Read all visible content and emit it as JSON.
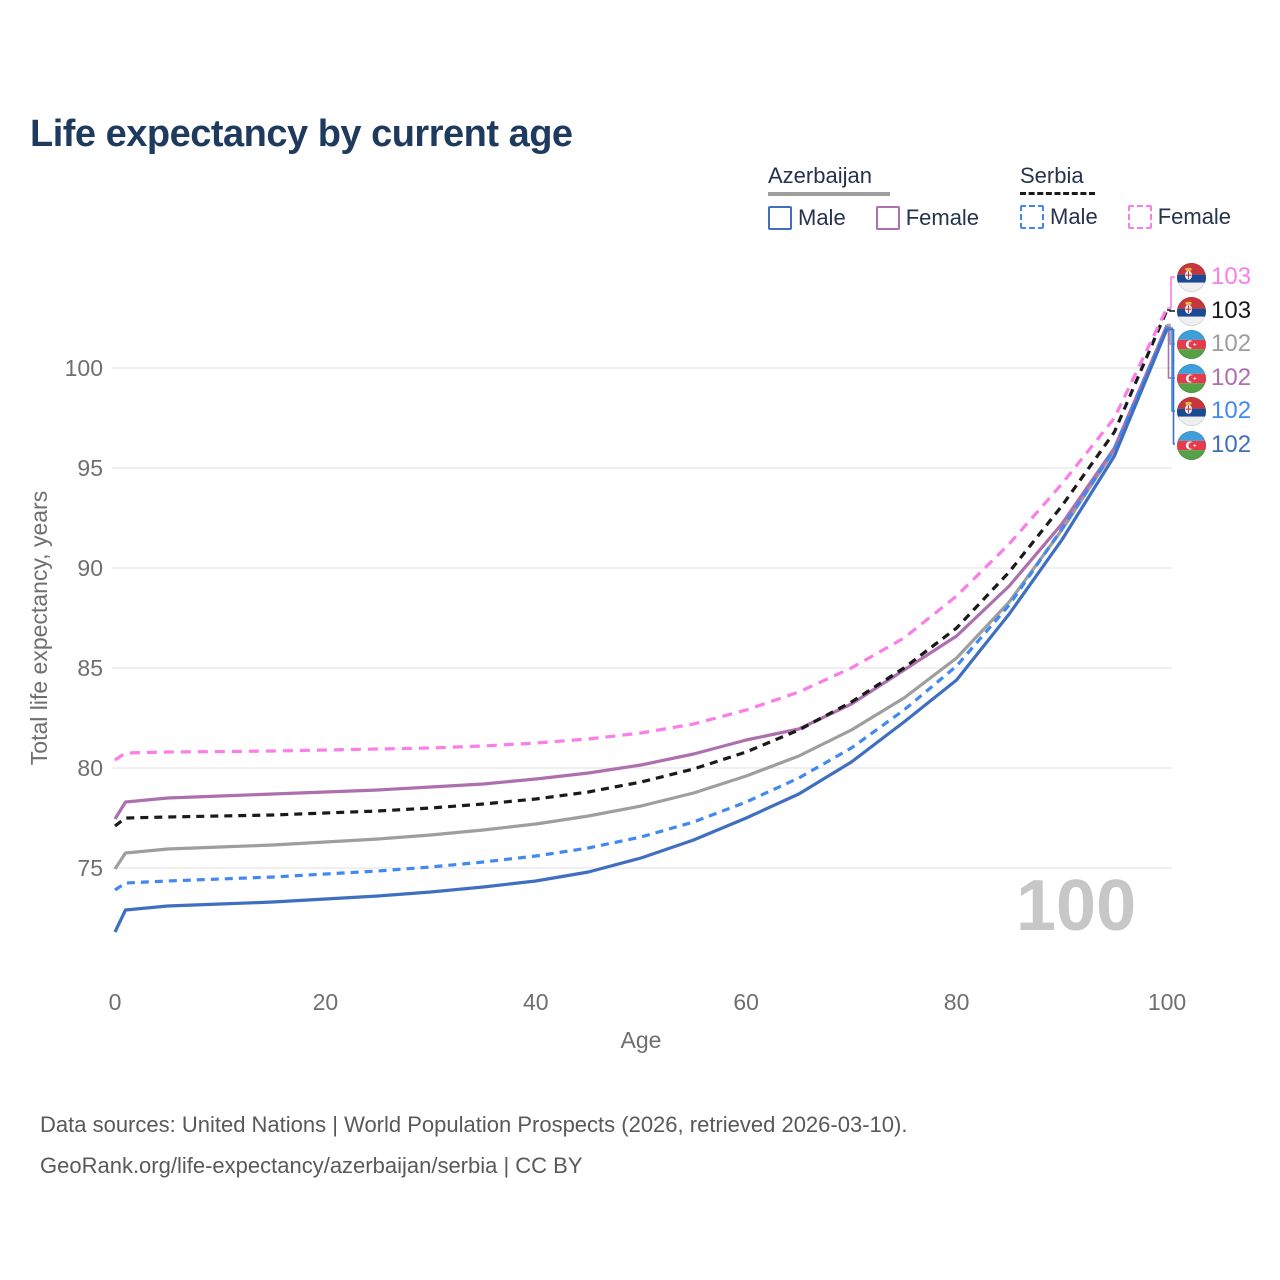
{
  "title": "Life expectancy by current age",
  "watermark": "100",
  "colors": {
    "title": "#1e3a5e",
    "axis_text": "#6f6f6f",
    "grid": "#ececec",
    "watermark": "#c7c7c7",
    "footer_text": "#595959",
    "legend_text": "#26334d",
    "azerbaijan_male": "#3f6fc1",
    "azerbaijan_female": "#ae6fae",
    "azerbaijan_total": "#9e9e9e",
    "serbia_male": "#4189f0",
    "serbia_female": "#fb7de8",
    "serbia_total": "#1a1a1a"
  },
  "legend": {
    "groups": [
      {
        "label": "Azerbaijan",
        "underline_style": "solid",
        "underline_color": "#9e9e9e",
        "items": [
          {
            "label": "Male",
            "color": "#3f6fc1",
            "dashed": false
          },
          {
            "label": "Female",
            "color": "#ae6fae",
            "dashed": false
          }
        ]
      },
      {
        "label": "Serbia",
        "underline_style": "dashed",
        "underline_color": "#1a1a1a",
        "items": [
          {
            "label": "Male",
            "color": "#4189f0",
            "dashed": true
          },
          {
            "label": "Female",
            "color": "#fb7de8",
            "dashed": true
          }
        ]
      }
    ]
  },
  "chart_data": {
    "type": "line",
    "title": "Life expectancy by current age",
    "xlabel": "Age",
    "ylabel": "Total life expectancy, years",
    "xlim": [
      0,
      100
    ],
    "ylim": [
      71,
      104
    ],
    "x_ticks": [
      0,
      20,
      40,
      60,
      80,
      100
    ],
    "y_ticks": [
      75,
      80,
      85,
      90,
      95,
      100
    ],
    "grid": "horizontal",
    "legend_position": "top-right",
    "x": [
      0,
      1,
      5,
      10,
      15,
      20,
      25,
      30,
      35,
      40,
      45,
      50,
      55,
      60,
      65,
      70,
      75,
      80,
      85,
      90,
      95,
      100
    ],
    "series": [
      {
        "id": "serbia-female",
        "name": "Serbia Female",
        "country": "Serbia",
        "sex": "Female",
        "color": "#fb7de8",
        "dashed": true,
        "dash": "10 7",
        "end_label": "103",
        "values": [
          80.4,
          80.75,
          80.8,
          80.82,
          80.85,
          80.9,
          80.95,
          81.0,
          81.1,
          81.25,
          81.45,
          81.75,
          82.2,
          82.9,
          83.8,
          85.0,
          86.5,
          88.6,
          91.2,
          94.2,
          97.5,
          103.0
        ]
      },
      {
        "id": "serbia-total",
        "name": "Serbia (both sexes)",
        "country": "Serbia",
        "sex": "Total",
        "color": "#1a1a1a",
        "dashed": true,
        "dash": "8 6",
        "end_label": "103",
        "values": [
          77.1,
          77.5,
          77.55,
          77.6,
          77.65,
          77.75,
          77.85,
          78.0,
          78.2,
          78.45,
          78.8,
          79.3,
          79.95,
          80.8,
          81.9,
          83.3,
          85.0,
          87.0,
          89.8,
          93.1,
          96.8,
          102.9
        ]
      },
      {
        "id": "azerbaijan-total",
        "name": "Azerbaijan (both sexes)",
        "country": "Azerbaijan",
        "sex": "Total",
        "color": "#9e9e9e",
        "dashed": false,
        "dash": "",
        "end_label": "102",
        "values": [
          74.95,
          75.75,
          75.95,
          76.05,
          76.15,
          76.3,
          76.45,
          76.65,
          76.9,
          77.2,
          77.6,
          78.1,
          78.75,
          79.6,
          80.6,
          81.9,
          83.5,
          85.5,
          88.3,
          91.9,
          95.9,
          102.15
        ]
      },
      {
        "id": "azerbaijan-female",
        "name": "Azerbaijan Female",
        "country": "Azerbaijan",
        "sex": "Female",
        "color": "#ae6fae",
        "dashed": false,
        "dash": "",
        "end_label": "102",
        "values": [
          77.45,
          78.3,
          78.5,
          78.6,
          78.7,
          78.8,
          78.9,
          79.05,
          79.2,
          79.45,
          79.75,
          80.15,
          80.7,
          81.4,
          81.95,
          83.2,
          84.9,
          86.6,
          89.1,
          92.2,
          96.0,
          102.1
        ]
      },
      {
        "id": "serbia-male",
        "name": "Serbia Male",
        "country": "Serbia",
        "sex": "Male",
        "color": "#4189f0",
        "dashed": true,
        "dash": "8 6",
        "end_label": "102",
        "values": [
          73.9,
          74.25,
          74.35,
          74.45,
          74.55,
          74.7,
          74.85,
          75.05,
          75.3,
          75.6,
          76.0,
          76.55,
          77.3,
          78.3,
          79.5,
          81.0,
          82.9,
          85.1,
          88.15,
          91.95,
          95.95,
          102.05
        ]
      },
      {
        "id": "azerbaijan-male",
        "name": "Azerbaijan Male",
        "country": "Azerbaijan",
        "sex": "Male",
        "color": "#3f6fc1",
        "dashed": false,
        "dash": "",
        "end_label": "102",
        "values": [
          71.8,
          72.9,
          73.1,
          73.2,
          73.3,
          73.45,
          73.6,
          73.8,
          74.05,
          74.35,
          74.8,
          75.5,
          76.4,
          77.5,
          78.7,
          80.3,
          82.3,
          84.4,
          87.7,
          91.4,
          95.6,
          101.95
        ]
      }
    ]
  },
  "end_labels": [
    {
      "flag": "serbia-flag-icon",
      "value": "103",
      "color": "#fb7de8"
    },
    {
      "flag": "serbia-flag-icon",
      "value": "103",
      "color": "#1a1a1a"
    },
    {
      "flag": "azerbaijan-flag-icon",
      "value": "102",
      "color": "#9e9e9e"
    },
    {
      "flag": "azerbaijan-flag-icon",
      "value": "102",
      "color": "#ae6fae"
    },
    {
      "flag": "serbia-flag-icon",
      "value": "102",
      "color": "#4189f0"
    },
    {
      "flag": "azerbaijan-flag-icon",
      "value": "102",
      "color": "#3f6fc1"
    }
  ],
  "footer": {
    "line1": "Data sources: United Nations | World Population Prospects (2026, retrieved 2026-03-10).",
    "line2": "GeoRank.org/life-expectancy/azerbaijan/serbia | CC BY"
  }
}
